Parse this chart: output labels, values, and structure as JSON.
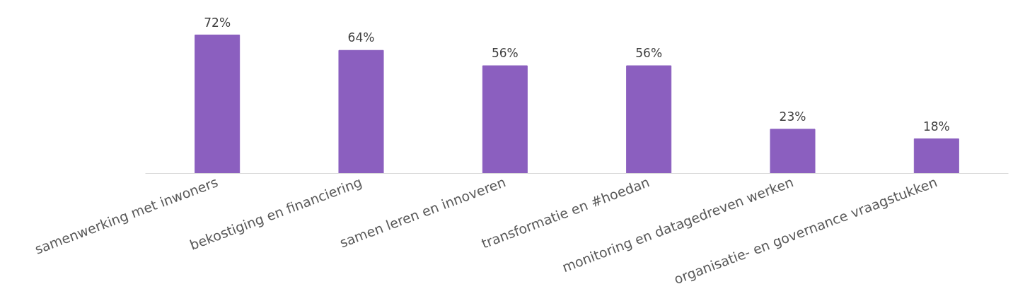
{
  "chart_data": {
    "type": "bar",
    "categories": [
      "samenwerking met inwoners",
      "bekostiging en financiering",
      "samen leren en innoveren",
      "transformatie en #hoedan",
      "monitoring en datagedreven werken",
      "organisatie- en governance vraagstukken"
    ],
    "values": [
      72,
      64,
      56,
      56,
      23,
      18
    ],
    "value_labels": [
      "72%",
      "64%",
      "56%",
      "56%",
      "23%",
      "18%"
    ],
    "color": "#8b5fbf"
  }
}
